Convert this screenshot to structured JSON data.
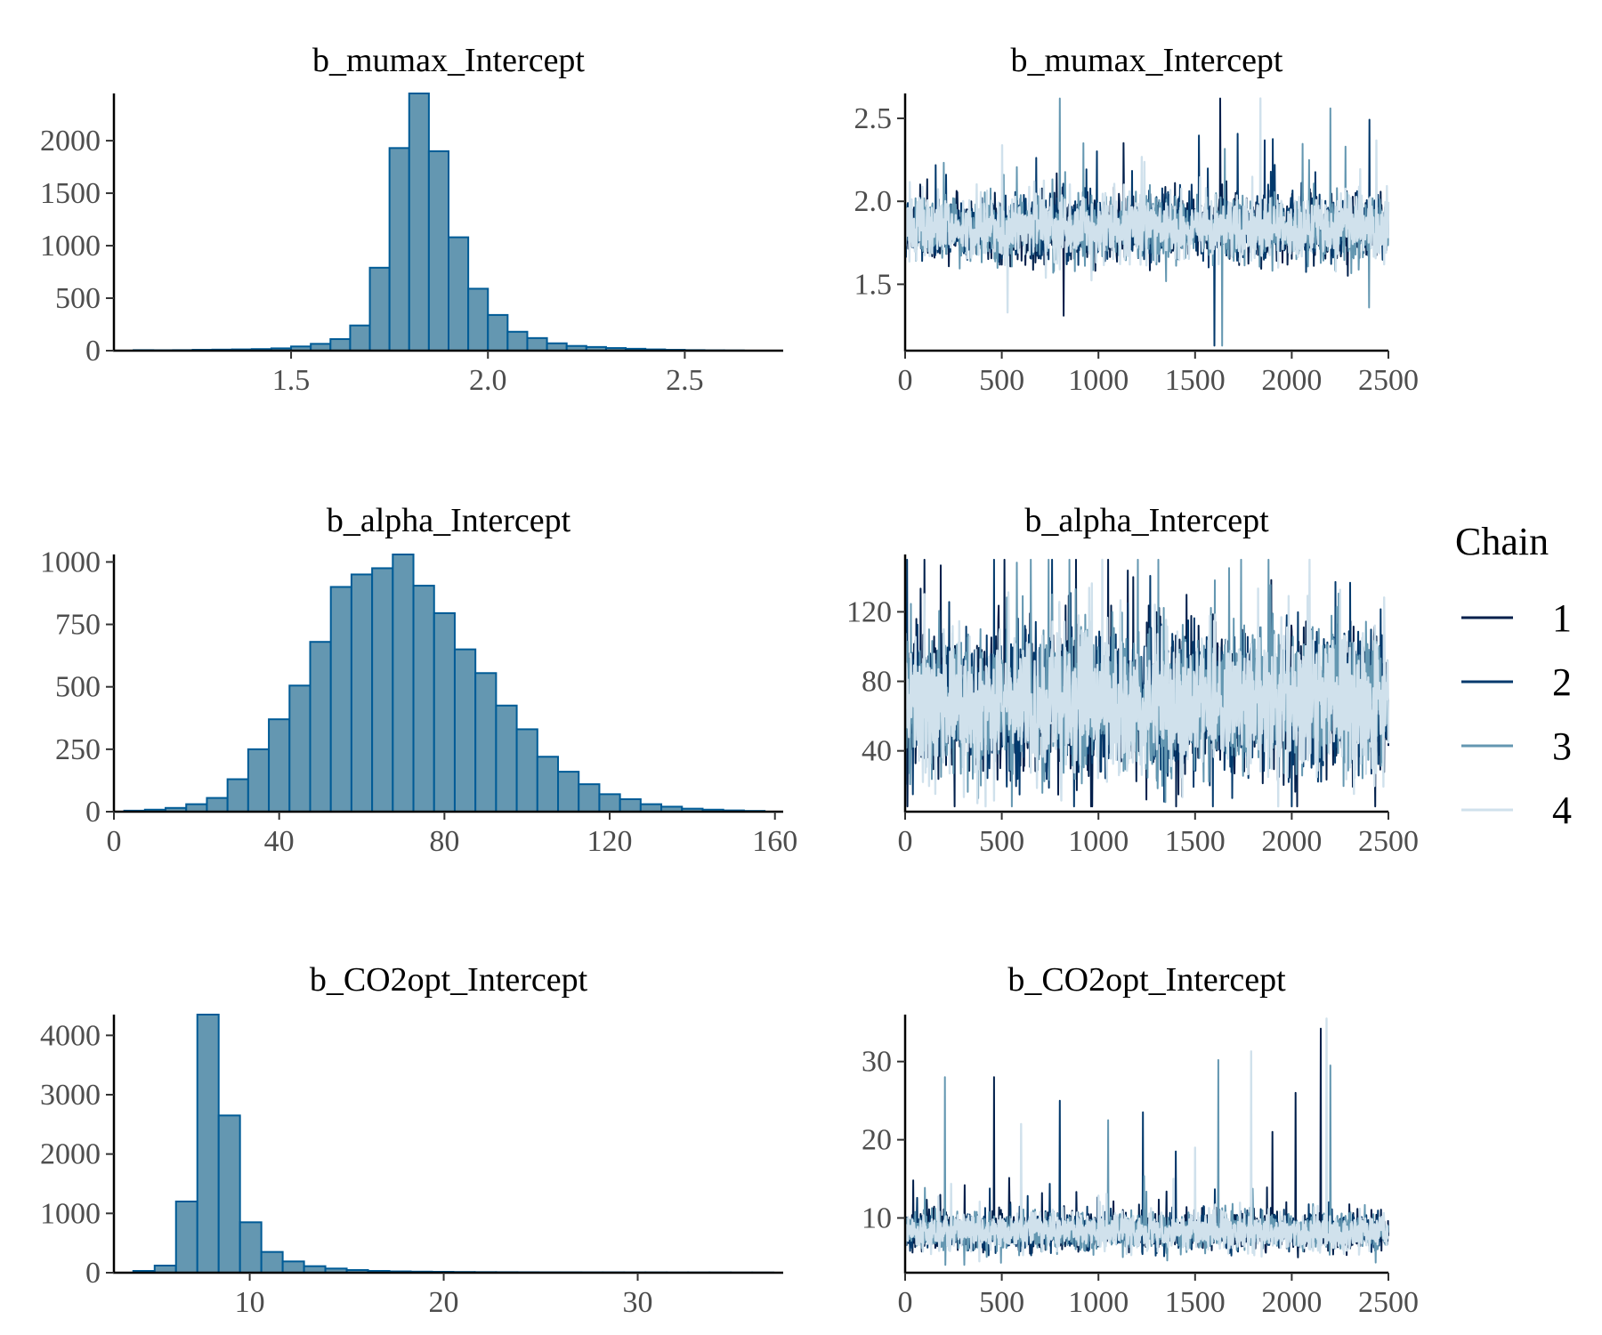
{
  "legend": {
    "title": "Chain",
    "entries": [
      "1",
      "2",
      "3",
      "4"
    ],
    "colors": [
      "#011f4b",
      "#03396c",
      "#6497b1",
      "#d0e1ec"
    ]
  },
  "colors": {
    "hist_fill": "#6497b1",
    "hist_stroke": "#005b96",
    "axis": "#000000",
    "tick_label": "#4d4d4d"
  },
  "chart_data": [
    {
      "type": "bar",
      "panel": "hist",
      "row": 0,
      "title": "b_mumax_Intercept",
      "xlim": [
        1.05,
        2.75
      ],
      "ylim": [
        0,
        2450
      ],
      "xticks": [
        1.5,
        2.0,
        2.5
      ],
      "xtick_labels": [
        "1.5",
        "2.0",
        "2.5"
      ],
      "yticks": [
        0,
        500,
        1000,
        1500,
        2000
      ],
      "ytick_labels": [
        "0",
        "500",
        "1000",
        "1500",
        "2000"
      ],
      "bin_start": 1.1,
      "bin_width": 0.05,
      "values": [
        5,
        4,
        5,
        8,
        10,
        12,
        15,
        22,
        40,
        65,
        110,
        240,
        790,
        1930,
        2450,
        1900,
        1080,
        590,
        340,
        180,
        120,
        70,
        45,
        35,
        25,
        18,
        12,
        8,
        5,
        3,
        2
      ]
    },
    {
      "type": "line",
      "panel": "trace",
      "row": 0,
      "title": "b_mumax_Intercept",
      "xlim": [
        0,
        2500
      ],
      "ylim": [
        1.1,
        2.65
      ],
      "xticks": [
        0,
        500,
        1000,
        1500,
        2000,
        2500
      ],
      "xtick_labels": [
        "0",
        "500",
        "1000",
        "1500",
        "2000",
        "2500"
      ],
      "yticks": [
        1.5,
        2.0,
        2.5
      ],
      "ytick_labels": [
        "1.5",
        "2.0",
        "2.5"
      ],
      "trace": {
        "center": 1.84,
        "spread": 0.09,
        "max": 2.62,
        "min": 1.13,
        "spikes": [
          {
            "chain": 3,
            "x": 800,
            "y": 2.62
          },
          {
            "chain": 1,
            "x": 1630,
            "y": 2.62
          },
          {
            "chain": 3,
            "x": 2200,
            "y": 2.56
          },
          {
            "chain": 2,
            "x": 1600,
            "y": 1.13
          },
          {
            "chain": 3,
            "x": 1640,
            "y": 1.13
          },
          {
            "chain": 1,
            "x": 820,
            "y": 1.31
          },
          {
            "chain": 4,
            "x": 530,
            "y": 1.33
          }
        ]
      }
    },
    {
      "type": "bar",
      "panel": "hist",
      "row": 1,
      "title": "b_alpha_Intercept",
      "xlim": [
        0,
        162
      ],
      "ylim": [
        0,
        1030
      ],
      "xticks": [
        0,
        40,
        80,
        120,
        160
      ],
      "xtick_labels": [
        "0",
        "40",
        "80",
        "120",
        "160"
      ],
      "yticks": [
        0,
        250,
        500,
        750,
        1000
      ],
      "ytick_labels": [
        "0",
        "250",
        "500",
        "750",
        "1000"
      ],
      "bin_start": 2.5,
      "bin_width": 5,
      "values": [
        4,
        8,
        15,
        30,
        55,
        130,
        250,
        370,
        505,
        680,
        900,
        950,
        975,
        1030,
        905,
        795,
        650,
        555,
        425,
        330,
        220,
        160,
        110,
        70,
        50,
        30,
        20,
        12,
        8,
        5,
        3
      ]
    },
    {
      "type": "line",
      "panel": "trace",
      "row": 1,
      "title": "b_alpha_Intercept",
      "xlim": [
        0,
        2500
      ],
      "ylim": [
        5,
        153
      ],
      "xticks": [
        0,
        500,
        1000,
        1500,
        2000,
        2500
      ],
      "xtick_labels": [
        "0",
        "500",
        "1000",
        "1500",
        "2000",
        "2500"
      ],
      "yticks": [
        40,
        80,
        120
      ],
      "ytick_labels": [
        "40",
        "80",
        "120"
      ],
      "trace": {
        "center": 68,
        "spread": 20,
        "max": 150,
        "min": 8,
        "spikes": [
          {
            "chain": 1,
            "x": 100,
            "y": 150
          },
          {
            "chain": 2,
            "x": 2000,
            "y": 8
          },
          {
            "chain": 1,
            "x": 1180,
            "y": 140
          },
          {
            "chain": 2,
            "x": 40,
            "y": 15
          }
        ]
      }
    },
    {
      "type": "bar",
      "panel": "hist",
      "row": 2,
      "title": "b_CO2opt_Intercept",
      "xlim": [
        3,
        37.5
      ],
      "ylim": [
        0,
        4350
      ],
      "xticks": [
        10,
        20,
        30
      ],
      "xtick_labels": [
        "10",
        "20",
        "30"
      ],
      "yticks": [
        0,
        1000,
        2000,
        3000,
        4000
      ],
      "ytick_labels": [
        "0",
        "1000",
        "2000",
        "3000",
        "4000"
      ],
      "bin_start": 4,
      "bin_width": 1.1,
      "values": [
        30,
        120,
        1200,
        4350,
        2650,
        850,
        350,
        190,
        110,
        70,
        45,
        30,
        22,
        18,
        15,
        12,
        10,
        9,
        8,
        7,
        7,
        6,
        6,
        5,
        5,
        4,
        4,
        4,
        3,
        3
      ]
    },
    {
      "type": "line",
      "panel": "trace",
      "row": 2,
      "title": "b_CO2opt_Intercept",
      "xlim": [
        0,
        2500
      ],
      "ylim": [
        3,
        36
      ],
      "xticks": [
        0,
        500,
        1000,
        1500,
        2000,
        2500
      ],
      "xtick_labels": [
        "0",
        "500",
        "1000",
        "1500",
        "2000",
        "2500"
      ],
      "yticks": [
        10,
        20,
        30
      ],
      "ytick_labels": [
        "10",
        "20",
        "30"
      ],
      "trace": {
        "center": 8.3,
        "spread": 1.1,
        "max": 35.5,
        "min": 4,
        "spikes": [
          {
            "chain": 4,
            "x": 2180,
            "y": 35.5
          },
          {
            "chain": 1,
            "x": 2150,
            "y": 34.2
          },
          {
            "chain": 3,
            "x": 1620,
            "y": 30.2
          },
          {
            "chain": 4,
            "x": 1790,
            "y": 31.3
          },
          {
            "chain": 3,
            "x": 205,
            "y": 28
          },
          {
            "chain": 1,
            "x": 460,
            "y": 28
          },
          {
            "chain": 3,
            "x": 2200,
            "y": 29.5
          },
          {
            "chain": 1,
            "x": 2020,
            "y": 26
          },
          {
            "chain": 2,
            "x": 1230,
            "y": 23.5
          },
          {
            "chain": 4,
            "x": 600,
            "y": 22
          },
          {
            "chain": 2,
            "x": 800,
            "y": 25
          },
          {
            "chain": 3,
            "x": 1050,
            "y": 22.5
          },
          {
            "chain": 1,
            "x": 1900,
            "y": 21
          },
          {
            "chain": 4,
            "x": 1500,
            "y": 19
          },
          {
            "chain": 2,
            "x": 1400,
            "y": 18.5
          }
        ]
      }
    }
  ]
}
